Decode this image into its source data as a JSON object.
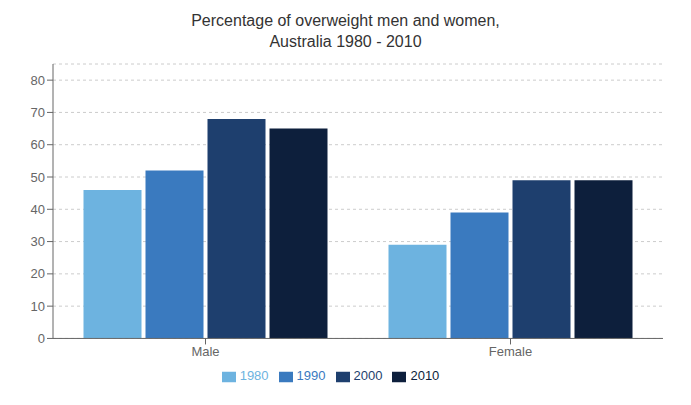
{
  "chart_data": {
    "type": "bar",
    "title": "Percentage of overweight men and women,\nAustralia 1980 - 2010",
    "categories": [
      "Male",
      "Female"
    ],
    "series": [
      {
        "name": "1980",
        "color": "#6db3e0",
        "values": [
          46,
          29
        ]
      },
      {
        "name": "1990",
        "color": "#3a7abf",
        "values": [
          52,
          39
        ]
      },
      {
        "name": "2000",
        "color": "#1e3f6e",
        "values": [
          68,
          49
        ]
      },
      {
        "name": "2010",
        "color": "#0d1f3c",
        "values": [
          65,
          49
        ]
      }
    ],
    "ylim": [
      0,
      85
    ],
    "yticks": [
      0,
      10,
      20,
      30,
      40,
      50,
      60,
      70,
      80
    ],
    "grid": true,
    "legend": "bottom"
  }
}
